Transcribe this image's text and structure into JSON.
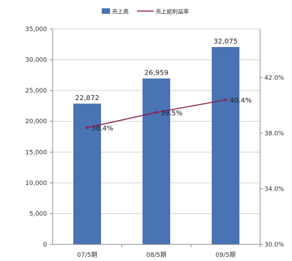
{
  "chart_data": {
    "type": "bar",
    "categories": [
      "07/5期",
      "08/5期",
      "09/5期"
    ],
    "series": [
      {
        "name": "売上高",
        "type": "bar",
        "axis": "left",
        "values": [
          22872,
          26959,
          32075
        ],
        "labels": [
          "22,872",
          "26,959",
          "32,075"
        ],
        "color": "#4a73b4"
      },
      {
        "name": "売上総利益率",
        "type": "line",
        "axis": "right",
        "values": [
          38.4,
          39.5,
          40.4
        ],
        "labels": [
          "38.4%",
          "39.5%",
          "40.4%"
        ],
        "color": "#8b2252"
      }
    ],
    "ylim_left": [
      0,
      35000
    ],
    "yticks_left": [
      {
        "value": 0,
        "label": "0"
      },
      {
        "value": 5000,
        "label": "5,000"
      },
      {
        "value": 10000,
        "label": "10,000"
      },
      {
        "value": 15000,
        "label": "15,000"
      },
      {
        "value": 20000,
        "label": "20,000"
      },
      {
        "value": 25000,
        "label": "25,000"
      },
      {
        "value": 30000,
        "label": "30,000"
      },
      {
        "value": 35000,
        "label": "35,000"
      }
    ],
    "ylim_right": [
      30,
      45.5
    ],
    "yticks_right": [
      {
        "value": 30,
        "label": "30.0%"
      },
      {
        "value": 34,
        "label": "34.0%"
      },
      {
        "value": 38,
        "label": "38.0%"
      },
      {
        "value": 42,
        "label": "42.0%"
      }
    ],
    "grid": true,
    "legend_position": "top-center"
  }
}
